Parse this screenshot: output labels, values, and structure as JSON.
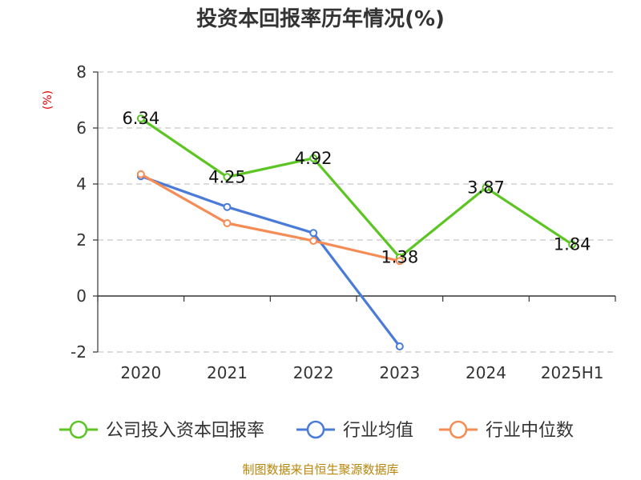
{
  "chart_data": {
    "type": "line",
    "title": "投资本回报率历年情况(%)",
    "ylabel": "(%)",
    "xlabel": "",
    "categories": [
      "2020",
      "2021",
      "2022",
      "2023",
      "2024",
      "2025H1"
    ],
    "ylim": [
      -2,
      8
    ],
    "yticks": [
      -2,
      0,
      2,
      4,
      6,
      8
    ],
    "grid": true,
    "legend_position": "bottom",
    "series": [
      {
        "name": "公司投入资本回报率",
        "color": "#5cc524",
        "values": [
          6.34,
          4.25,
          4.92,
          1.38,
          3.87,
          1.84
        ],
        "labels": [
          "6.34",
          "4.25",
          "4.92",
          "1.38",
          "3.87",
          "1.84"
        ]
      },
      {
        "name": "行业均值",
        "color": "#4b7bd8",
        "values": [
          4.28,
          3.18,
          2.25,
          -1.8,
          null,
          null
        ]
      },
      {
        "name": "行业中位数",
        "color": "#f58c55",
        "values": [
          4.35,
          2.6,
          1.97,
          1.25,
          null,
          null
        ]
      }
    ]
  },
  "source": "制图数据来自恒生聚源数据库"
}
